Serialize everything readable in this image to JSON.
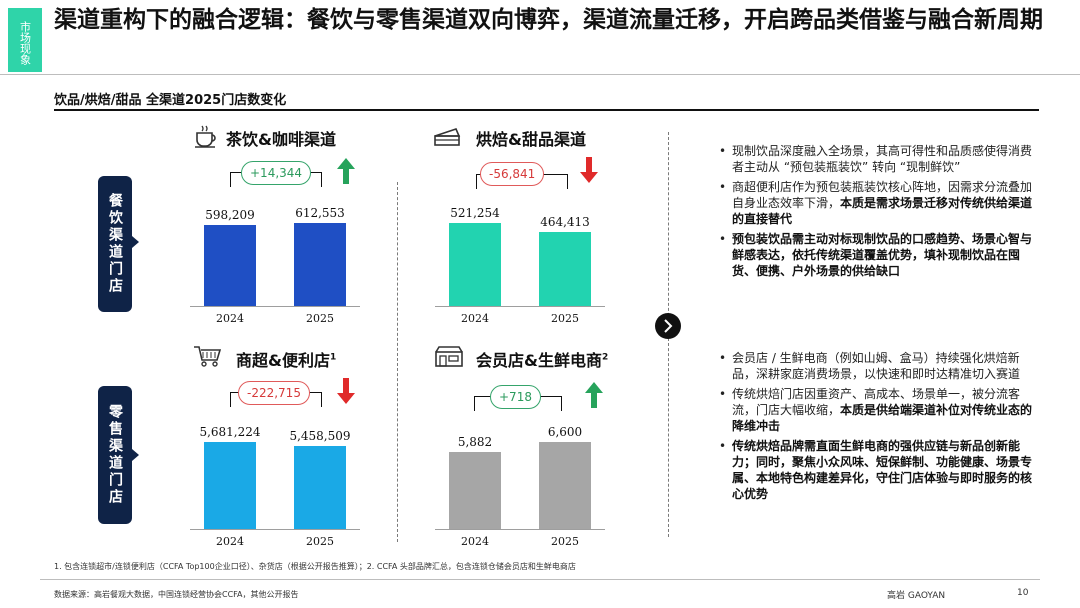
{
  "side_tag": "市场现象",
  "title": "渠道重构下的融合逻辑：餐饮与零售渠道双向博弈，渠道流量迁移，开启跨品类借鉴与融合新周期",
  "subtitle": "饮品/烘焙/甜品 全渠道2025门店数变化",
  "row_labels": {
    "catering": "餐饮渠道门店",
    "retail": "零售渠道门店"
  },
  "panels": {
    "tea": {
      "title": "茶饮&咖啡渠道",
      "icon": "coffee-cup-icon",
      "delta": "+14,344",
      "trend": "up"
    },
    "bakery": {
      "title": "烘焙&甜品渠道",
      "icon": "cake-icon",
      "delta": "-56,841",
      "trend": "down"
    },
    "supermarket": {
      "title": "商超&便利店",
      "sup": "1",
      "icon": "shopping-cart-icon",
      "delta": "-222,715",
      "trend": "down"
    },
    "member": {
      "title": "会员店&生鲜电商",
      "sup": "2",
      "icon": "store-icon",
      "delta": "+718",
      "trend": "up"
    }
  },
  "chart_data": [
    {
      "type": "bar",
      "title": "茶饮&咖啡渠道",
      "categories": [
        "2024",
        "2025"
      ],
      "values": [
        598209,
        612553
      ],
      "value_labels": [
        "598,209",
        "612,553"
      ],
      "color": "#1f4fc4"
    },
    {
      "type": "bar",
      "title": "烘焙&甜品渠道",
      "categories": [
        "2024",
        "2025"
      ],
      "values": [
        521254,
        464413
      ],
      "value_labels": [
        "521,254",
        "464,413"
      ],
      "color": "#22d3b0"
    },
    {
      "type": "bar",
      "title": "商超&便利店",
      "categories": [
        "2024",
        "2025"
      ],
      "values": [
        5681224,
        5458509
      ],
      "value_labels": [
        "5,681,224",
        "5,458,509"
      ],
      "color": "#1aa9e6"
    },
    {
      "type": "bar",
      "title": "会员店&生鲜电商",
      "categories": [
        "2024",
        "2025"
      ],
      "values": [
        5882,
        6600
      ],
      "value_labels": [
        "5,882",
        "6,600"
      ],
      "color": "#a6a6a6"
    }
  ],
  "bullets_top": [
    {
      "text": "现制饮品深度融入全场景，其高可得性和品质感使得消费者主动从 “预包装瓶装饮” 转向 “现制鲜饮”",
      "bold": ""
    },
    {
      "text": "商超便利店作为预包装瓶装饮核心阵地，因需求分流叠加自身业态效率下滑，",
      "bold": "本质是需求场景迁移对传统供给渠道的直接替代"
    },
    {
      "text": "",
      "bold": "预包装饮品需主动对标现制饮品的口感趋势、场景心智与鲜感表达，依托传统渠道覆盖优势，填补现制饮品在囤货、便携、户外场景的供给缺口"
    }
  ],
  "bullets_bottom": [
    {
      "text": "会员店 / 生鲜电商（例如山姆、盒马）持续强化烘焙新品，深耕家庭消费场景，以快速和即时达精准切入赛道",
      "bold": ""
    },
    {
      "text": "传统烘焙门店因重资产、高成本、场景单一，被分流客流，门店大幅收缩，",
      "bold": "本质是供给端渠道补位对传统业态的降维冲击"
    },
    {
      "text": "",
      "bold": "传统烘焙品牌需直面生鲜电商的强供应链与新品创新能力；同时，聚焦小众风味、短保鲜制、功能健康、场景专属、本地特色构建差异化，守住门店体验与即时服务的核心优势"
    }
  ],
  "footnote": "1. 包含连锁超市/连锁便利店（CCFA Top100企业口径）、杂货店（根据公开报告推算）；2. CCFA 头部品牌汇总，包含连锁仓储会员店和生鲜电商店",
  "source": "数据来源：高岩餐观大数据，中国连锁经营协会CCFA，其他公开报告",
  "brand": "高岩 GAOYAN",
  "page_number": "10",
  "colors": {
    "accent": "#2fd4a9",
    "navy": "#0f2347",
    "up": "#2b9a5c",
    "down": "#d63a3a"
  }
}
